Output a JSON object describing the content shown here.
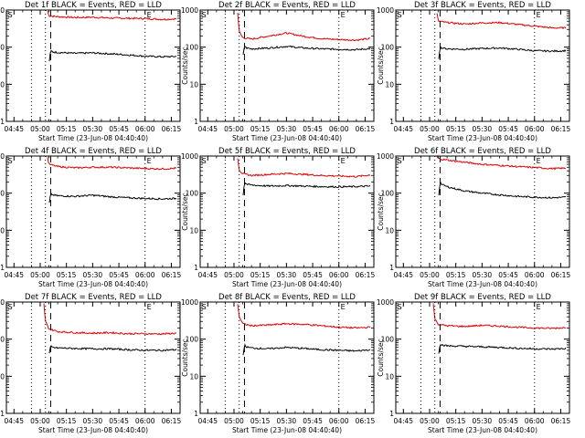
{
  "figure": {
    "xlabel": "Start Time (23-Jun-08 04:40:40)",
    "ylabel": "Counts/sec"
  },
  "chart_data": [
    {
      "type": "line",
      "title": "Det 1f BLACK = Events, RED = LLD",
      "corner_marks": [
        "S",
        "E"
      ],
      "xlabel": "Start Time (23-Jun-08 04:40:40)",
      "ylabel": "Counts/sec",
      "x_tick_labels": [
        "04:45",
        "05:00",
        "05:15",
        "05:30",
        "05:45",
        "06:00",
        "06:15"
      ],
      "y_tick_labels": [
        "1",
        "10",
        "100",
        "1000"
      ],
      "xlim": [
        "04:40:40",
        "06:20:00"
      ],
      "ylim": [
        1,
        1000
      ],
      "yscale": "log",
      "vlines": {
        "dotted": [
          "04:55",
          "05:03",
          "06:00"
        ],
        "dashed": [
          "05:06"
        ]
      },
      "series": [
        {
          "name": "LLD",
          "color": "#e00000",
          "x": [
            "05:04",
            "05:05",
            "05:10",
            "05:20",
            "05:30",
            "05:40",
            "05:50",
            "06:00",
            "06:10",
            "06:18"
          ],
          "y": [
            1000,
            700,
            660,
            630,
            640,
            610,
            600,
            590,
            560,
            580
          ]
        },
        {
          "name": "Events",
          "color": "#000000",
          "x": [
            "05:05",
            "05:06",
            "05:07",
            "05:10",
            "05:20",
            "05:30",
            "05:40",
            "05:50",
            "06:00",
            "06:10",
            "06:18"
          ],
          "y": [
            35,
            80,
            75,
            72,
            68,
            70,
            66,
            62,
            57,
            55,
            56
          ]
        }
      ]
    },
    {
      "type": "line",
      "title": "Det 2f BLACK = Events, RED = LLD",
      "corner_marks": [
        "S",
        "E"
      ],
      "xlabel": "Start Time (23-Jun-08 04:40:40)",
      "ylabel": "Counts/sec",
      "x_tick_labels": [
        "04:45",
        "05:00",
        "05:15",
        "05:30",
        "05:45",
        "06:00",
        "06:15"
      ],
      "y_tick_labels": [
        "1",
        "10",
        "100",
        "1000"
      ],
      "xlim": [
        "04:40:40",
        "06:20:00"
      ],
      "ylim": [
        1,
        1000
      ],
      "yscale": "log",
      "vlines": {
        "dotted": [
          "04:55",
          "05:03",
          "06:00"
        ],
        "dashed": [
          "05:06"
        ]
      },
      "series": [
        {
          "name": "LLD",
          "color": "#e00000",
          "x": [
            "05:02",
            "05:03",
            "05:05",
            "05:10",
            "05:20",
            "05:30",
            "05:40",
            "05:50",
            "06:00",
            "06:10",
            "06:18"
          ],
          "y": [
            1000,
            260,
            180,
            165,
            200,
            240,
            195,
            170,
            160,
            155,
            170
          ]
        },
        {
          "name": "Events",
          "color": "#000000",
          "x": [
            "05:05",
            "05:06",
            "05:07",
            "05:10",
            "05:20",
            "05:30",
            "05:40",
            "05:50",
            "06:00",
            "06:10",
            "06:18"
          ],
          "y": [
            50,
            110,
            95,
            90,
            95,
            105,
            95,
            90,
            88,
            85,
            92
          ]
        }
      ]
    },
    {
      "type": "line",
      "title": "Det 3f BLACK = Events, RED = LLD",
      "corner_marks": [
        "S",
        "E"
      ],
      "xlabel": "Start Time (23-Jun-08 04:40:40)",
      "ylabel": "Counts/sec",
      "x_tick_labels": [
        "04:45",
        "05:00",
        "05:15",
        "05:30",
        "05:45",
        "06:00",
        "06:15"
      ],
      "y_tick_labels": [
        "1",
        "10",
        "100",
        "1000"
      ],
      "xlim": [
        "04:40:40",
        "06:20:00"
      ],
      "ylim": [
        1,
        1000
      ],
      "yscale": "log",
      "vlines": {
        "dotted": [
          "04:55",
          "05:03",
          "06:00"
        ],
        "dashed": [
          "05:06"
        ]
      },
      "series": [
        {
          "name": "LLD",
          "color": "#e00000",
          "x": [
            "05:04",
            "05:05",
            "05:10",
            "05:20",
            "05:30",
            "05:40",
            "05:50",
            "06:00",
            "06:10",
            "06:18"
          ],
          "y": [
            900,
            500,
            460,
            420,
            450,
            460,
            410,
            370,
            330,
            330
          ]
        },
        {
          "name": "Events",
          "color": "#000000",
          "x": [
            "05:05",
            "05:06",
            "05:07",
            "05:10",
            "05:20",
            "05:30",
            "05:40",
            "05:50",
            "06:00",
            "06:10",
            "06:18"
          ],
          "y": [
            40,
            100,
            95,
            90,
            88,
            92,
            95,
            88,
            80,
            78,
            80
          ]
        }
      ]
    },
    {
      "type": "line",
      "title": "Det 4f BLACK = Events, RED = LLD",
      "corner_marks": [
        "S",
        "E"
      ],
      "xlabel": "Start Time (23-Jun-08 04:40:40)",
      "ylabel": "Counts/sec",
      "x_tick_labels": [
        "04:45",
        "05:00",
        "05:15",
        "05:30",
        "05:45",
        "06:00",
        "06:15"
      ],
      "y_tick_labels": [
        "1",
        "10",
        "100",
        "1000"
      ],
      "xlim": [
        "04:40:40",
        "06:20:00"
      ],
      "ylim": [
        1,
        1000
      ],
      "yscale": "log",
      "vlines": {
        "dotted": [
          "04:55",
          "05:03",
          "06:00"
        ],
        "dashed": [
          "05:06"
        ]
      },
      "series": [
        {
          "name": "LLD",
          "color": "#e00000",
          "x": [
            "05:04",
            "05:05",
            "05:10",
            "05:20",
            "05:30",
            "05:40",
            "05:50",
            "06:00",
            "06:10",
            "06:18"
          ],
          "y": [
            1000,
            600,
            520,
            480,
            500,
            500,
            480,
            460,
            450,
            470
          ]
        },
        {
          "name": "Events",
          "color": "#000000",
          "x": [
            "05:05",
            "05:06",
            "05:07",
            "05:10",
            "05:20",
            "05:30",
            "05:40",
            "05:50",
            "06:00",
            "06:10",
            "06:18"
          ],
          "y": [
            45,
            95,
            90,
            85,
            82,
            88,
            80,
            75,
            72,
            70,
            72
          ]
        }
      ]
    },
    {
      "type": "line",
      "title": "Det 5f BLACK = Events, RED = LLD",
      "corner_marks": [
        "S",
        "E"
      ],
      "xlabel": "Start Time (23-Jun-08 04:40:40)",
      "ylabel": "Counts/sec",
      "x_tick_labels": [
        "04:45",
        "05:00",
        "05:15",
        "05:30",
        "05:45",
        "06:00",
        "06:15"
      ],
      "y_tick_labels": [
        "1",
        "10",
        "100",
        "1000"
      ],
      "xlim": [
        "04:40:40",
        "06:20:00"
      ],
      "ylim": [
        1,
        1000
      ],
      "yscale": "log",
      "vlines": {
        "dotted": [
          "04:55",
          "05:03",
          "06:00"
        ],
        "dashed": [
          "05:06"
        ]
      },
      "series": [
        {
          "name": "LLD",
          "color": "#e00000",
          "x": [
            "05:02",
            "05:03",
            "05:05",
            "05:10",
            "05:20",
            "05:30",
            "05:40",
            "05:50",
            "06:00",
            "06:10",
            "06:18"
          ],
          "y": [
            1000,
            420,
            330,
            300,
            320,
            340,
            320,
            300,
            290,
            280,
            310
          ]
        },
        {
          "name": "Events",
          "color": "#000000",
          "x": [
            "05:05",
            "05:06",
            "05:07",
            "05:10",
            "05:20",
            "05:30",
            "05:40",
            "05:50",
            "06:00",
            "06:10",
            "06:18"
          ],
          "y": [
            70,
            200,
            175,
            165,
            155,
            160,
            155,
            150,
            148,
            150,
            155
          ]
        }
      ]
    },
    {
      "type": "line",
      "title": "Det 6f BLACK = Events, RED = LLD",
      "corner_marks": [
        "S",
        "E"
      ],
      "xlabel": "Start Time (23-Jun-08 04:40:40)",
      "ylabel": "Counts/sec",
      "x_tick_labels": [
        "04:45",
        "05:00",
        "05:15",
        "05:30",
        "05:45",
        "06:00",
        "06:15"
      ],
      "y_tick_labels": [
        "1",
        "10",
        "100",
        "1000"
      ],
      "xlim": [
        "04:40:40",
        "06:20:00"
      ],
      "ylim": [
        1,
        1000
      ],
      "yscale": "log",
      "vlines": {
        "dotted": [
          "04:55",
          "05:03",
          "06:00"
        ],
        "dashed": [
          "05:06"
        ]
      },
      "series": [
        {
          "name": "LLD",
          "color": "#e00000",
          "x": [
            "05:04",
            "05:05",
            "05:10",
            "05:20",
            "05:30",
            "05:40",
            "05:50",
            "06:00",
            "06:10",
            "06:18"
          ],
          "y": [
            1000,
            850,
            780,
            680,
            600,
            560,
            520,
            490,
            460,
            470
          ]
        },
        {
          "name": "Events",
          "color": "#000000",
          "x": [
            "05:05",
            "05:06",
            "05:07",
            "05:10",
            "05:15",
            "05:20",
            "05:30",
            "05:40",
            "05:50",
            "06:00",
            "06:10",
            "06:18"
          ],
          "y": [
            70,
            200,
            170,
            150,
            130,
            115,
            100,
            90,
            82,
            78,
            75,
            78
          ]
        }
      ]
    },
    {
      "type": "line",
      "title": "Det 7f BLACK = Events, RED = LLD",
      "corner_marks": [
        "S",
        "E"
      ],
      "xlabel": "Start Time (23-Jun-08 04:40:40)",
      "ylabel": "Counts/sec",
      "x_tick_labels": [
        "04:45",
        "05:00",
        "05:15",
        "05:30",
        "05:45",
        "06:00",
        "06:15"
      ],
      "y_tick_labels": [
        "1",
        "10",
        "100",
        "1000"
      ],
      "xlim": [
        "04:40:40",
        "06:20:00"
      ],
      "ylim": [
        1,
        1000
      ],
      "yscale": "log",
      "vlines": {
        "dotted": [
          "04:55",
          "05:03",
          "06:00"
        ],
        "dashed": [
          "05:06"
        ]
      },
      "series": [
        {
          "name": "LLD",
          "color": "#e00000",
          "x": [
            "05:02",
            "05:03",
            "05:05",
            "05:10",
            "05:20",
            "05:30",
            "05:40",
            "05:50",
            "06:00",
            "06:10",
            "06:18"
          ],
          "y": [
            1000,
            300,
            190,
            160,
            150,
            145,
            150,
            140,
            140,
            138,
            145
          ]
        },
        {
          "name": "Events",
          "color": "#000000",
          "x": [
            "05:05",
            "05:06",
            "05:07",
            "05:10",
            "05:20",
            "05:30",
            "05:40",
            "05:50",
            "06:00",
            "06:10",
            "06:18"
          ],
          "y": [
            35,
            65,
            60,
            58,
            56,
            55,
            55,
            52,
            50,
            50,
            52
          ]
        }
      ]
    },
    {
      "type": "line",
      "title": "Det 8f BLACK = Events, RED = LLD",
      "corner_marks": [
        "S",
        "E"
      ],
      "xlabel": "Start Time (23-Jun-08 04:40:40)",
      "ylabel": "Counts/sec",
      "x_tick_labels": [
        "04:45",
        "05:00",
        "05:15",
        "05:30",
        "05:45",
        "06:00",
        "06:15"
      ],
      "y_tick_labels": [
        "1",
        "10",
        "100",
        "1000"
      ],
      "xlim": [
        "04:40:40",
        "06:20:00"
      ],
      "ylim": [
        1,
        1000
      ],
      "yscale": "log",
      "vlines": {
        "dotted": [
          "04:55",
          "05:03",
          "06:00"
        ],
        "dashed": [
          "05:06"
        ]
      },
      "series": [
        {
          "name": "LLD",
          "color": "#e00000",
          "x": [
            "05:02",
            "05:03",
            "05:05",
            "05:10",
            "05:20",
            "05:30",
            "05:40",
            "05:50",
            "06:00",
            "06:10",
            "06:18"
          ],
          "y": [
            1000,
            400,
            260,
            230,
            240,
            260,
            250,
            230,
            210,
            200,
            210
          ]
        },
        {
          "name": "Events",
          "color": "#000000",
          "x": [
            "05:05",
            "05:06",
            "05:07",
            "05:10",
            "05:20",
            "05:30",
            "05:40",
            "05:50",
            "06:00",
            "06:10",
            "06:18"
          ],
          "y": [
            30,
            70,
            62,
            58,
            55,
            60,
            56,
            52,
            50,
            48,
            52
          ]
        }
      ]
    },
    {
      "type": "line",
      "title": "Det 9f BLACK = Events, RED = LLD",
      "corner_marks": [
        "S",
        "E"
      ],
      "xlabel": "Start Time (23-Jun-08 04:40:40)",
      "ylabel": "Counts/sec",
      "x_tick_labels": [
        "04:45",
        "05:00",
        "05:15",
        "05:30",
        "05:45",
        "06:00",
        "06:15"
      ],
      "y_tick_labels": [
        "1",
        "10",
        "100",
        "1000"
      ],
      "xlim": [
        "04:40:40",
        "06:20:00"
      ],
      "ylim": [
        1,
        1000
      ],
      "yscale": "log",
      "vlines": {
        "dotted": [
          "04:55",
          "05:03",
          "06:00"
        ],
        "dashed": [
          "05:06"
        ]
      },
      "series": [
        {
          "name": "LLD",
          "color": "#e00000",
          "x": [
            "05:02",
            "05:03",
            "05:05",
            "05:10",
            "05:20",
            "05:30",
            "05:40",
            "05:50",
            "06:00",
            "06:10",
            "06:18"
          ],
          "y": [
            1000,
            350,
            250,
            230,
            220,
            235,
            225,
            210,
            200,
            195,
            205
          ]
        },
        {
          "name": "Events",
          "color": "#000000",
          "x": [
            "05:05",
            "05:06",
            "05:07",
            "05:10",
            "05:20",
            "05:30",
            "05:40",
            "05:50",
            "06:00",
            "06:10",
            "06:18"
          ],
          "y": [
            35,
            75,
            70,
            66,
            64,
            62,
            60,
            57,
            55,
            54,
            56
          ]
        }
      ]
    }
  ]
}
